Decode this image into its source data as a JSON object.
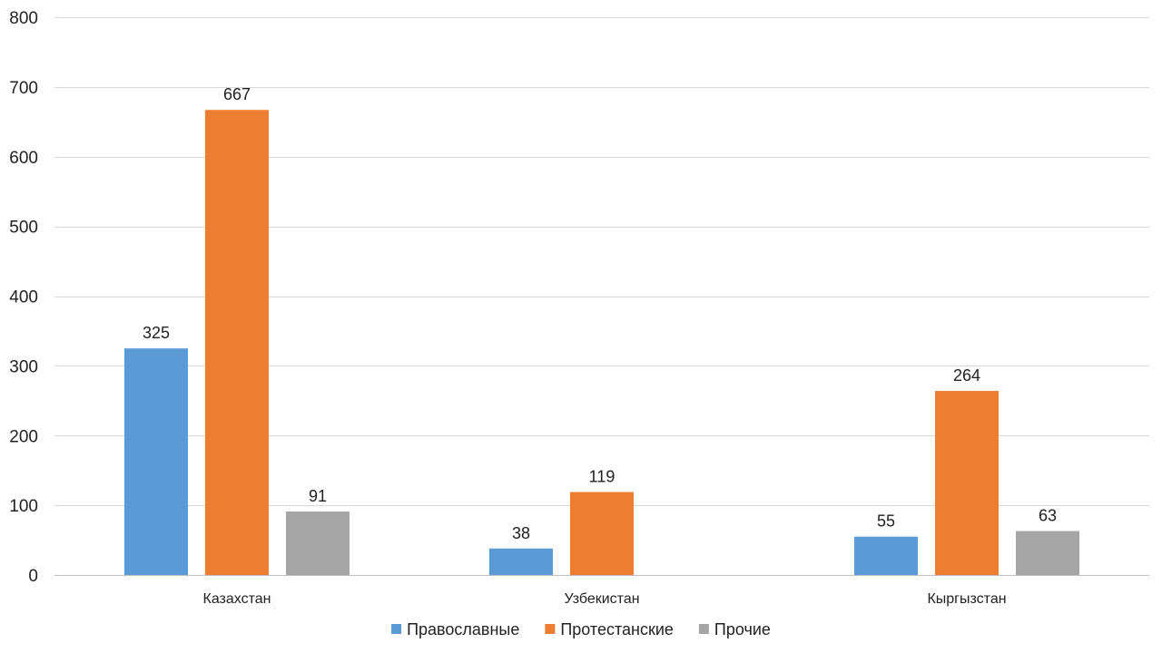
{
  "chart_data": {
    "type": "bar",
    "categories": [
      "Казахстан",
      "Узбекистан",
      "Кыргызстан"
    ],
    "series": [
      {
        "name": "Православные",
        "color": "#5b9bd5",
        "values": [
          325,
          38,
          55
        ]
      },
      {
        "name": "Протестанские",
        "color": "#ed7d31",
        "values": [
          667,
          119,
          264
        ]
      },
      {
        "name": "Прочие",
        "color": "#a5a5a5",
        "values": [
          91,
          null,
          63
        ]
      }
    ],
    "ylim": [
      0,
      800
    ],
    "yticks": [
      0,
      100,
      200,
      300,
      400,
      500,
      600,
      700,
      800
    ],
    "grid": true,
    "legend": "bottom",
    "title": "",
    "xlabel": "",
    "ylabel": ""
  }
}
